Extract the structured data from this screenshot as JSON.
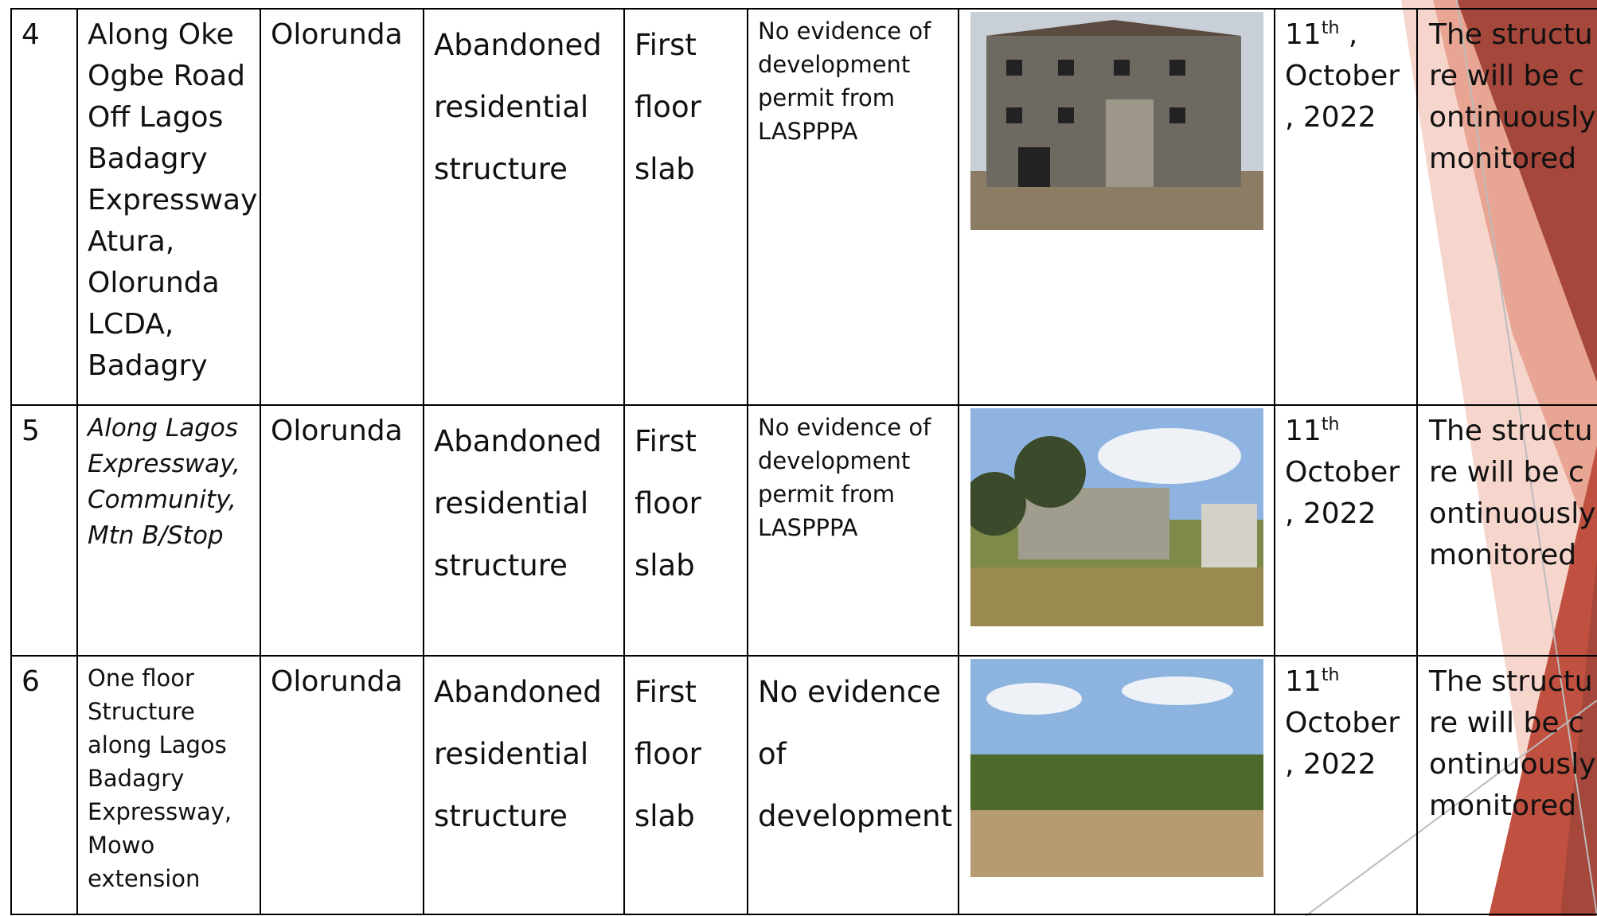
{
  "rows": [
    {
      "sn": "4",
      "location": "Along Oke Ogbe Road Off Lagos Badagry Expressway, Atura, Olorunda LCDA, Badagry",
      "lcda": "Olorunda",
      "type": "Abandoned residential structure",
      "stage": "First floor slab",
      "remark": "No evidence of development permit from LASPPPA",
      "date": {
        "day": "11",
        "suffix": "th",
        "rest": ", October , 2022"
      },
      "action": "The structure will be continuously monitored"
    },
    {
      "sn": "5",
      "location": "Along Lagos Expressway, Community, Mtn B/Stop",
      "lcda": "Olorunda",
      "type": "Abandoned residential structure",
      "stage": "First floor slab",
      "remark": "No evidence of development permit from LASPPPA",
      "date": {
        "day": "11",
        "suffix": "th",
        "rest": "October , 2022"
      },
      "action": "The structure will be continuously monitored"
    },
    {
      "sn": "6",
      "location": "One floor Structure along Lagos Badagry Expressway, Mowo extension",
      "lcda": "Olorunda",
      "type": "Abandoned residential structure",
      "stage": "First floor slab",
      "remark": "No evidence of development",
      "date": {
        "day": "11",
        "suffix": "th",
        "rest": "October , 2022"
      },
      "action": "The structure will be continuously monitored"
    }
  ]
}
